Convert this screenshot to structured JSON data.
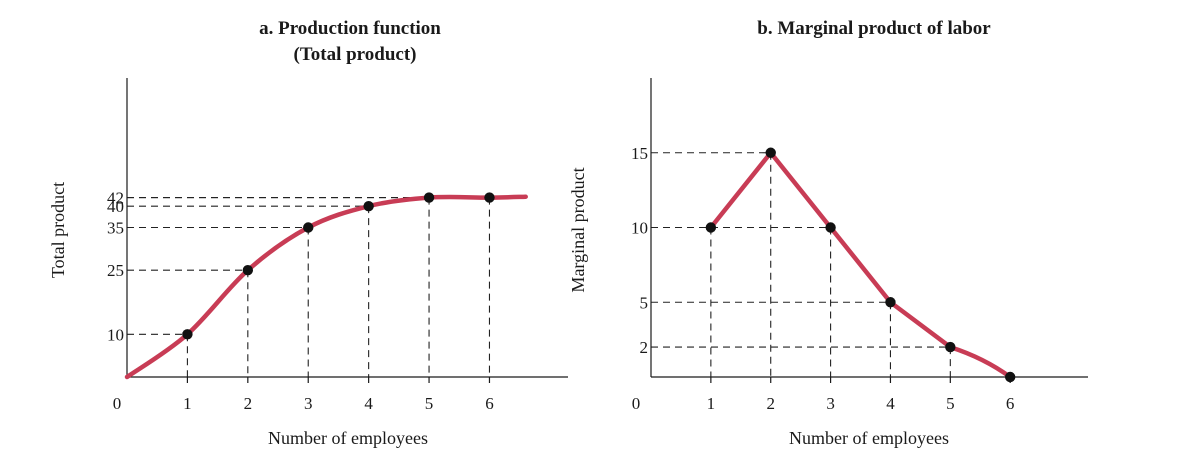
{
  "chart_data": [
    {
      "type": "line",
      "title_line1": "a. Production function",
      "title_line2": "(Total product)",
      "xlabel": "Number of employees",
      "ylabel": "Total product",
      "origin_label": "0",
      "x": [
        1,
        2,
        3,
        4,
        5,
        6
      ],
      "x_tick_labels": [
        "1",
        "2",
        "3",
        "4",
        "5",
        "6"
      ],
      "y_tick_values": [
        10,
        25,
        35,
        40,
        42
      ],
      "y_tick_labels": [
        "10",
        "25",
        "35",
        "40",
        "42"
      ],
      "series": [
        {
          "points": [
            [
              1,
              10
            ],
            [
              2,
              25
            ],
            [
              3,
              35
            ],
            [
              4,
              40
            ],
            [
              5,
              42
            ],
            [
              6,
              42
            ]
          ]
        }
      ],
      "curve_start": [
        0,
        0
      ],
      "curve_end_x": 6.6,
      "curve_end_y": 42.2,
      "xlim": [
        0,
        7.3
      ],
      "ylim": [
        0,
        70
      ],
      "guide_lines": "dashed",
      "line_color": "#c83c55",
      "marker_color": "#111111"
    },
    {
      "type": "line",
      "title": "b. Marginal product of labor",
      "xlabel": "Number of employees",
      "ylabel": "Marginal product",
      "origin_label": "0",
      "x": [
        1,
        2,
        3,
        4,
        5,
        6
      ],
      "x_tick_labels": [
        "1",
        "2",
        "3",
        "4",
        "5",
        "6"
      ],
      "y_tick_values": [
        2,
        5,
        10,
        15
      ],
      "y_tick_labels": [
        "2",
        "5",
        "10",
        "15"
      ],
      "series": [
        {
          "points": [
            [
              1,
              10
            ],
            [
              2,
              15
            ],
            [
              3,
              10
            ],
            [
              4,
              5
            ],
            [
              5,
              2
            ],
            [
              6,
              0
            ]
          ]
        }
      ],
      "xlim": [
        0,
        7.3
      ],
      "ylim": [
        0,
        20
      ],
      "guide_lines": "dashed",
      "line_color": "#c83c55",
      "marker_color": "#111111"
    }
  ]
}
